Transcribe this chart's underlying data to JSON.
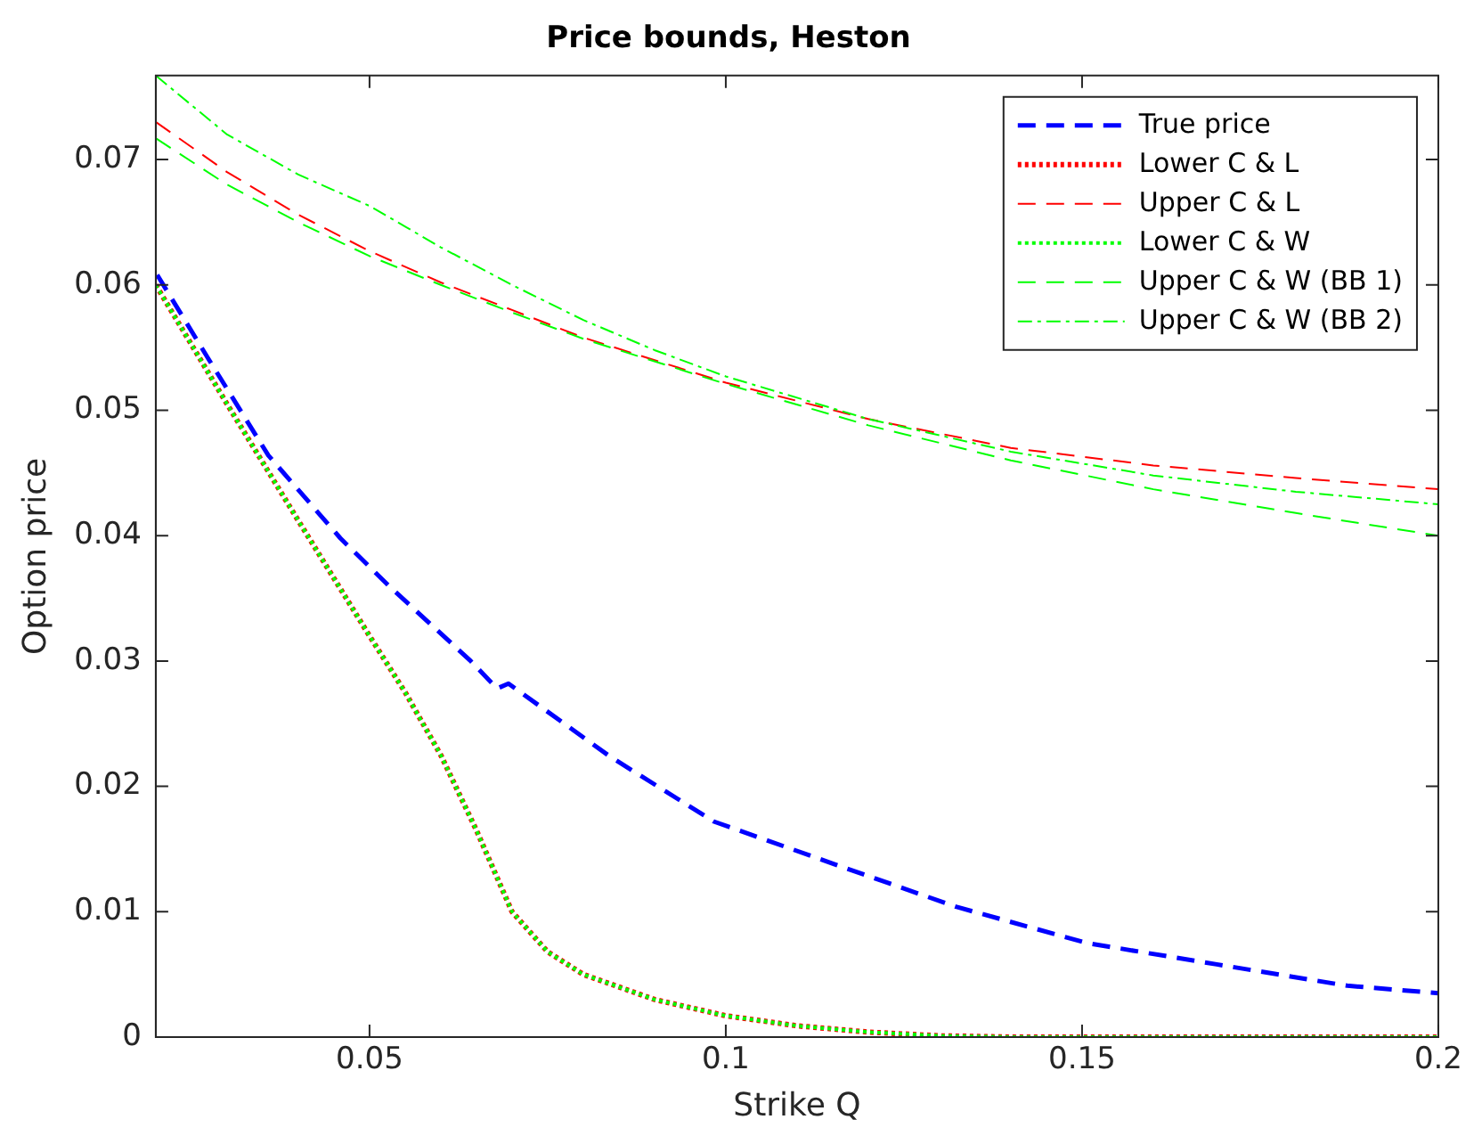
{
  "chart_data": {
    "type": "line",
    "title": "Price bounds, Heston",
    "xlabel": "Strike Q",
    "ylabel": "Option price",
    "xlim": [
      0.02,
      0.2
    ],
    "xticks": [
      0.05,
      0.1,
      0.15,
      0.2
    ],
    "ylim": [
      0,
      0.0767
    ],
    "yticks": [
      0,
      0.01,
      0.02,
      0.03,
      0.04,
      0.05,
      0.06,
      0.07
    ],
    "grid": false,
    "legend": "top right",
    "marker": "none",
    "series": [
      {
        "name": "True price",
        "color": "#0000ff",
        "line_style": "dashed",
        "x": [
          0.0202,
          0.0275,
          0.0358,
          0.0459,
          0.0527,
          0.0642,
          0.0679,
          0.0695,
          0.0837,
          0.0983,
          0.1152,
          0.1323,
          0.1507,
          0.1689,
          0.1872,
          0.2
        ],
        "values": [
          0.0608,
          0.054,
          0.0464,
          0.0398,
          0.036,
          0.03,
          0.0278,
          0.0282,
          0.0224,
          0.0172,
          0.0138,
          0.0104,
          0.0075,
          0.0058,
          0.0041,
          0.0035
        ]
      },
      {
        "name": "Lower C & L",
        "color": "#ff0000",
        "line_style": "dotted",
        "x": [
          0.02,
          0.03,
          0.04,
          0.05,
          0.055,
          0.06,
          0.065,
          0.07,
          0.075,
          0.08,
          0.09,
          0.1,
          0.11,
          0.12,
          0.13,
          0.14,
          0.2
        ],
        "values": [
          0.06,
          0.0505,
          0.0412,
          0.032,
          0.0275,
          0.0225,
          0.0165,
          0.01,
          0.0068,
          0.005,
          0.003,
          0.0017,
          0.0009,
          0.0004,
          0.0001,
          0,
          0
        ]
      },
      {
        "name": "Upper C & L",
        "color": "#ff0000",
        "line_style": "dashed",
        "x": [
          0.02,
          0.03,
          0.04,
          0.05,
          0.06,
          0.07,
          0.08,
          0.1,
          0.12,
          0.14,
          0.16,
          0.18,
          0.2
        ],
        "values": [
          0.073,
          0.069,
          0.0656,
          0.0627,
          0.0602,
          0.058,
          0.0558,
          0.0522,
          0.0493,
          0.047,
          0.0456,
          0.0446,
          0.0437
        ]
      },
      {
        "name": "Lower C & W",
        "color": "#00ff00",
        "line_style": "dotted",
        "x": [
          0.02,
          0.03,
          0.04,
          0.05,
          0.055,
          0.06,
          0.065,
          0.07,
          0.075,
          0.08,
          0.09,
          0.1,
          0.11,
          0.12,
          0.13,
          0.14,
          0.2
        ],
        "values": [
          0.06,
          0.0505,
          0.0412,
          0.032,
          0.0275,
          0.0225,
          0.0165,
          0.01,
          0.0068,
          0.005,
          0.003,
          0.0017,
          0.0009,
          0.0004,
          0.0001,
          0,
          0
        ]
      },
      {
        "name": "Upper C & W (BB 1)",
        "color": "#00ff00",
        "line_style": "dashed",
        "x": [
          0.02,
          0.03,
          0.04,
          0.05,
          0.06,
          0.07,
          0.08,
          0.1,
          0.12,
          0.14,
          0.16,
          0.18,
          0.2
        ],
        "values": [
          0.0717,
          0.068,
          0.065,
          0.0623,
          0.06,
          0.0578,
          0.0557,
          0.0521,
          0.0488,
          0.046,
          0.0437,
          0.0418,
          0.04
        ]
      },
      {
        "name": "Upper C & W (BB 2)",
        "color": "#00ff00",
        "line_style": "dashdot",
        "x": [
          0.02,
          0.03,
          0.04,
          0.05,
          0.06,
          0.07,
          0.08,
          0.09,
          0.1,
          0.12,
          0.14,
          0.16,
          0.18,
          0.2
        ],
        "values": [
          0.0767,
          0.072,
          0.0688,
          0.0663,
          0.063,
          0.06,
          0.0572,
          0.0548,
          0.0527,
          0.0493,
          0.0467,
          0.0448,
          0.0435,
          0.0425
        ]
      }
    ]
  }
}
